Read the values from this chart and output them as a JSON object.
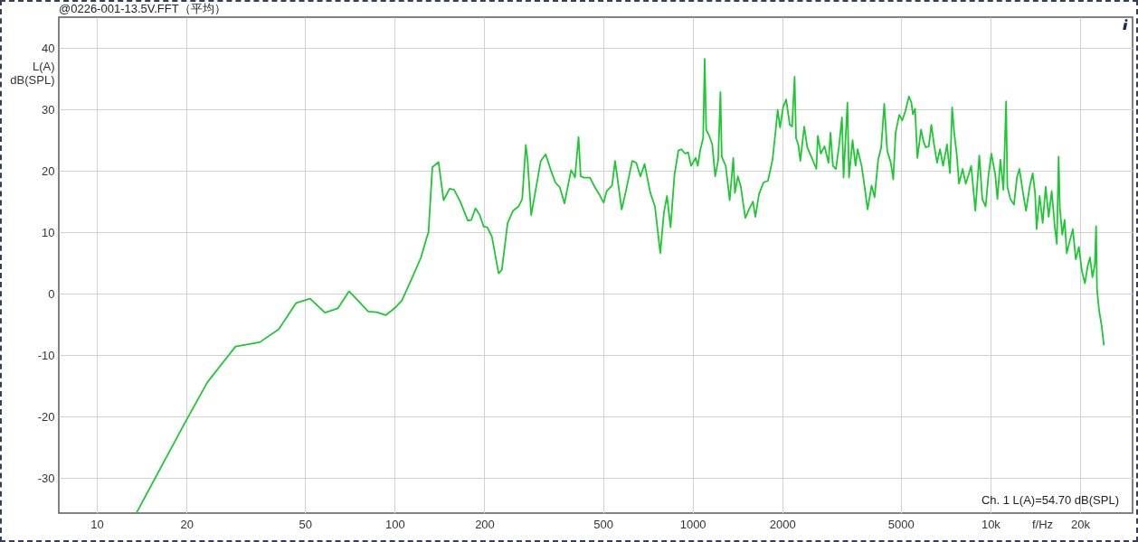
{
  "chart_data": {
    "type": "line",
    "title": "@0226-001-13.5V.FFT（平均）",
    "xlabel": "f/Hz",
    "ylabel": "L(A)\ndB(SPL)",
    "annotations": [
      "Ch. 1 L(A)=54.70 dB(SPL)"
    ],
    "x": [
      13.6,
      19.8,
      23.5,
      29.2,
      35.2,
      40.8,
      46.7,
      52.0,
      58.3,
      64.4,
      70.2,
      75.6,
      81.5,
      87.1,
      93.2,
      100.2,
      105.7,
      114.2,
      122.5,
      128.4,
      129.8,
      133.8,
      140.3,
      145.9,
      152.8,
      158.3,
      165.9,
      175.9,
      180.8,
      186.7,
      192.9,
      198.9,
      204.5,
      211.9,
      223.2,
      228.9,
      239.3,
      249.5,
      260.4,
      267.9,
      275.4,
      279.2,
      287.1,
      297.3,
      309.2,
      321.1,
      334.2,
      346.1,
      358.4,
      371.5,
      380.2,
      391.0,
      398.3,
      402.8,
      414.1,
      420.9,
      431.7,
      452.5,
      468.6,
      485.5,
      502.8,
      514.5,
      536.6,
      549.2,
      578.0,
      598.4,
      627.0,
      646.9,
      667.9,
      690.1,
      721.4,
      747.3,
      779.1,
      801.1,
      820.4,
      843.4,
      869.6,
      896.2,
      917.7,
      943.6,
      966.0,
      988.5,
      1024,
      1041,
      1060,
      1085,
      1098,
      1111,
      1137,
      1164,
      1191,
      1219,
      1240,
      1253,
      1292,
      1332,
      1370,
      1387,
      1419,
      1452,
      1503,
      1546,
      1595,
      1625,
      1671,
      1730,
      1791,
      1855,
      1900,
      1930,
      1967,
      2014,
      2061,
      2119,
      2158,
      2200,
      2225,
      2263,
      2300,
      2370,
      2427,
      2514,
      2603,
      2633,
      2696,
      2773,
      2858,
      2904,
      2959,
      3028,
      3101,
      3173,
      3212,
      3310,
      3350,
      3444,
      3524,
      3581,
      3694,
      3780,
      3869,
      3989,
      4083,
      4198,
      4297,
      4400,
      4501,
      4629,
      4717,
      4804,
      4941,
      5058,
      5180,
      5326,
      5427,
      5489,
      5582,
      5685,
      5847,
      5957,
      6068,
      6209,
      6332,
      6466,
      6618,
      6772,
      6934,
      7146,
      7313,
      7437,
      7557,
      7702,
      7843,
      8066,
      8260,
      8453,
      8614,
      8898,
      9175,
      9389,
      9636,
      9841,
      10070,
      10378,
      10553,
      10800,
      11054,
      11287,
      11397,
      11665,
      11995,
      12274,
      12510,
      12864,
      13166,
      13541,
      13867,
      14120,
      14288,
      14622,
      14973,
      15325,
      15683,
      16059,
      16437,
      16704,
      16941,
      17100,
      17418,
      17745,
      18030,
      18471,
      18905,
      19346,
      19810,
      20278,
      20749,
      21246,
      21592,
      22004,
      22407,
      22630,
      22787,
      23157,
      23598,
      24032
    ],
    "series": [
      {
        "color": "#1ec832",
        "values": [
          -35.6,
          -20.9,
          -14.4,
          -8.6,
          -7.9,
          -5.8,
          -1.5,
          -0.8,
          -3.1,
          -2.4,
          0.4,
          -1.2,
          -2.9,
          -3.0,
          -3.5,
          -2.3,
          -1.1,
          2.5,
          5.9,
          9.3,
          10.0,
          20.6,
          21.4,
          15.2,
          17.1,
          16.9,
          15.0,
          11.9,
          12.0,
          13.9,
          12.8,
          10.9,
          10.8,
          9.3,
          3.3,
          3.9,
          11.5,
          13.5,
          14.2,
          15.4,
          24.2,
          21.8,
          12.8,
          16.9,
          21.6,
          22.7,
          20.1,
          18.1,
          17.3,
          14.7,
          17.2,
          20.1,
          19.4,
          18.9,
          25.5,
          19.1,
          18.9,
          18.9,
          17.4,
          16.2,
          14.8,
          16.7,
          17.6,
          21.6,
          13.7,
          16.9,
          21.6,
          21.3,
          19.1,
          21.1,
          16.4,
          14.2,
          6.6,
          13.2,
          15.9,
          10.8,
          19.4,
          23.3,
          23.5,
          22.8,
          23.0,
          20.8,
          22.1,
          20.8,
          23.3,
          25.3,
          38.2,
          26.7,
          25.7,
          24.3,
          19.1,
          21.8,
          32.8,
          22.3,
          20.8,
          15.2,
          22.1,
          16.4,
          19.1,
          17.4,
          12.3,
          13.7,
          15.0,
          12.5,
          16.2,
          18.1,
          18.4,
          21.8,
          26.5,
          29.9,
          27.0,
          30.4,
          31.6,
          27.5,
          27.2,
          35.3,
          25.3,
          24.3,
          21.6,
          27.2,
          23.8,
          22.1,
          20.3,
          25.7,
          22.8,
          24.0,
          21.3,
          26.2,
          20.8,
          20.3,
          24.0,
          28.7,
          18.9,
          31.1,
          18.9,
          25.0,
          20.8,
          23.5,
          20.8,
          17.4,
          13.7,
          17.6,
          15.7,
          21.8,
          23.8,
          30.9,
          23.3,
          21.3,
          18.6,
          26.2,
          29.1,
          28.2,
          29.7,
          32.1,
          31.1,
          29.2,
          30.1,
          22.1,
          26.7,
          24.8,
          23.8,
          24.0,
          27.5,
          24.3,
          21.3,
          23.5,
          20.8,
          24.3,
          19.6,
          30.3,
          26.2,
          22.8,
          17.9,
          20.3,
          17.9,
          19.4,
          20.8,
          13.5,
          22.5,
          15.4,
          14.2,
          19.1,
          22.8,
          19.4,
          15.4,
          21.8,
          16.9,
          31.3,
          17.4,
          15.4,
          14.5,
          18.9,
          20.3,
          16.4,
          13.5,
          17.4,
          19.6,
          16.4,
          10.5,
          15.9,
          11.5,
          17.4,
          12.5,
          16.7,
          11.0,
          8.1,
          22.3,
          14.0,
          9.6,
          12.0,
          6.6,
          8.6,
          10.5,
          5.6,
          7.6,
          3.7,
          1.7,
          4.7,
          5.9,
          2.7,
          4.7,
          11.0,
          0.7,
          -2.7,
          -5.1,
          -8.3
        ]
      }
    ],
    "xlim": [
      7.45,
      30000
    ],
    "xticks": [
      10,
      20,
      50,
      100,
      200,
      500,
      1000,
      2000,
      5000,
      {
        "value": 10000,
        "label": "10k"
      },
      {
        "value": 20000,
        "label": "20k"
      }
    ],
    "ylim": [
      -35.7,
      45
    ],
    "yticks": [
      -30,
      -20,
      -10,
      0,
      10,
      20,
      30,
      40
    ],
    "grid": true,
    "log": "x"
  }
}
